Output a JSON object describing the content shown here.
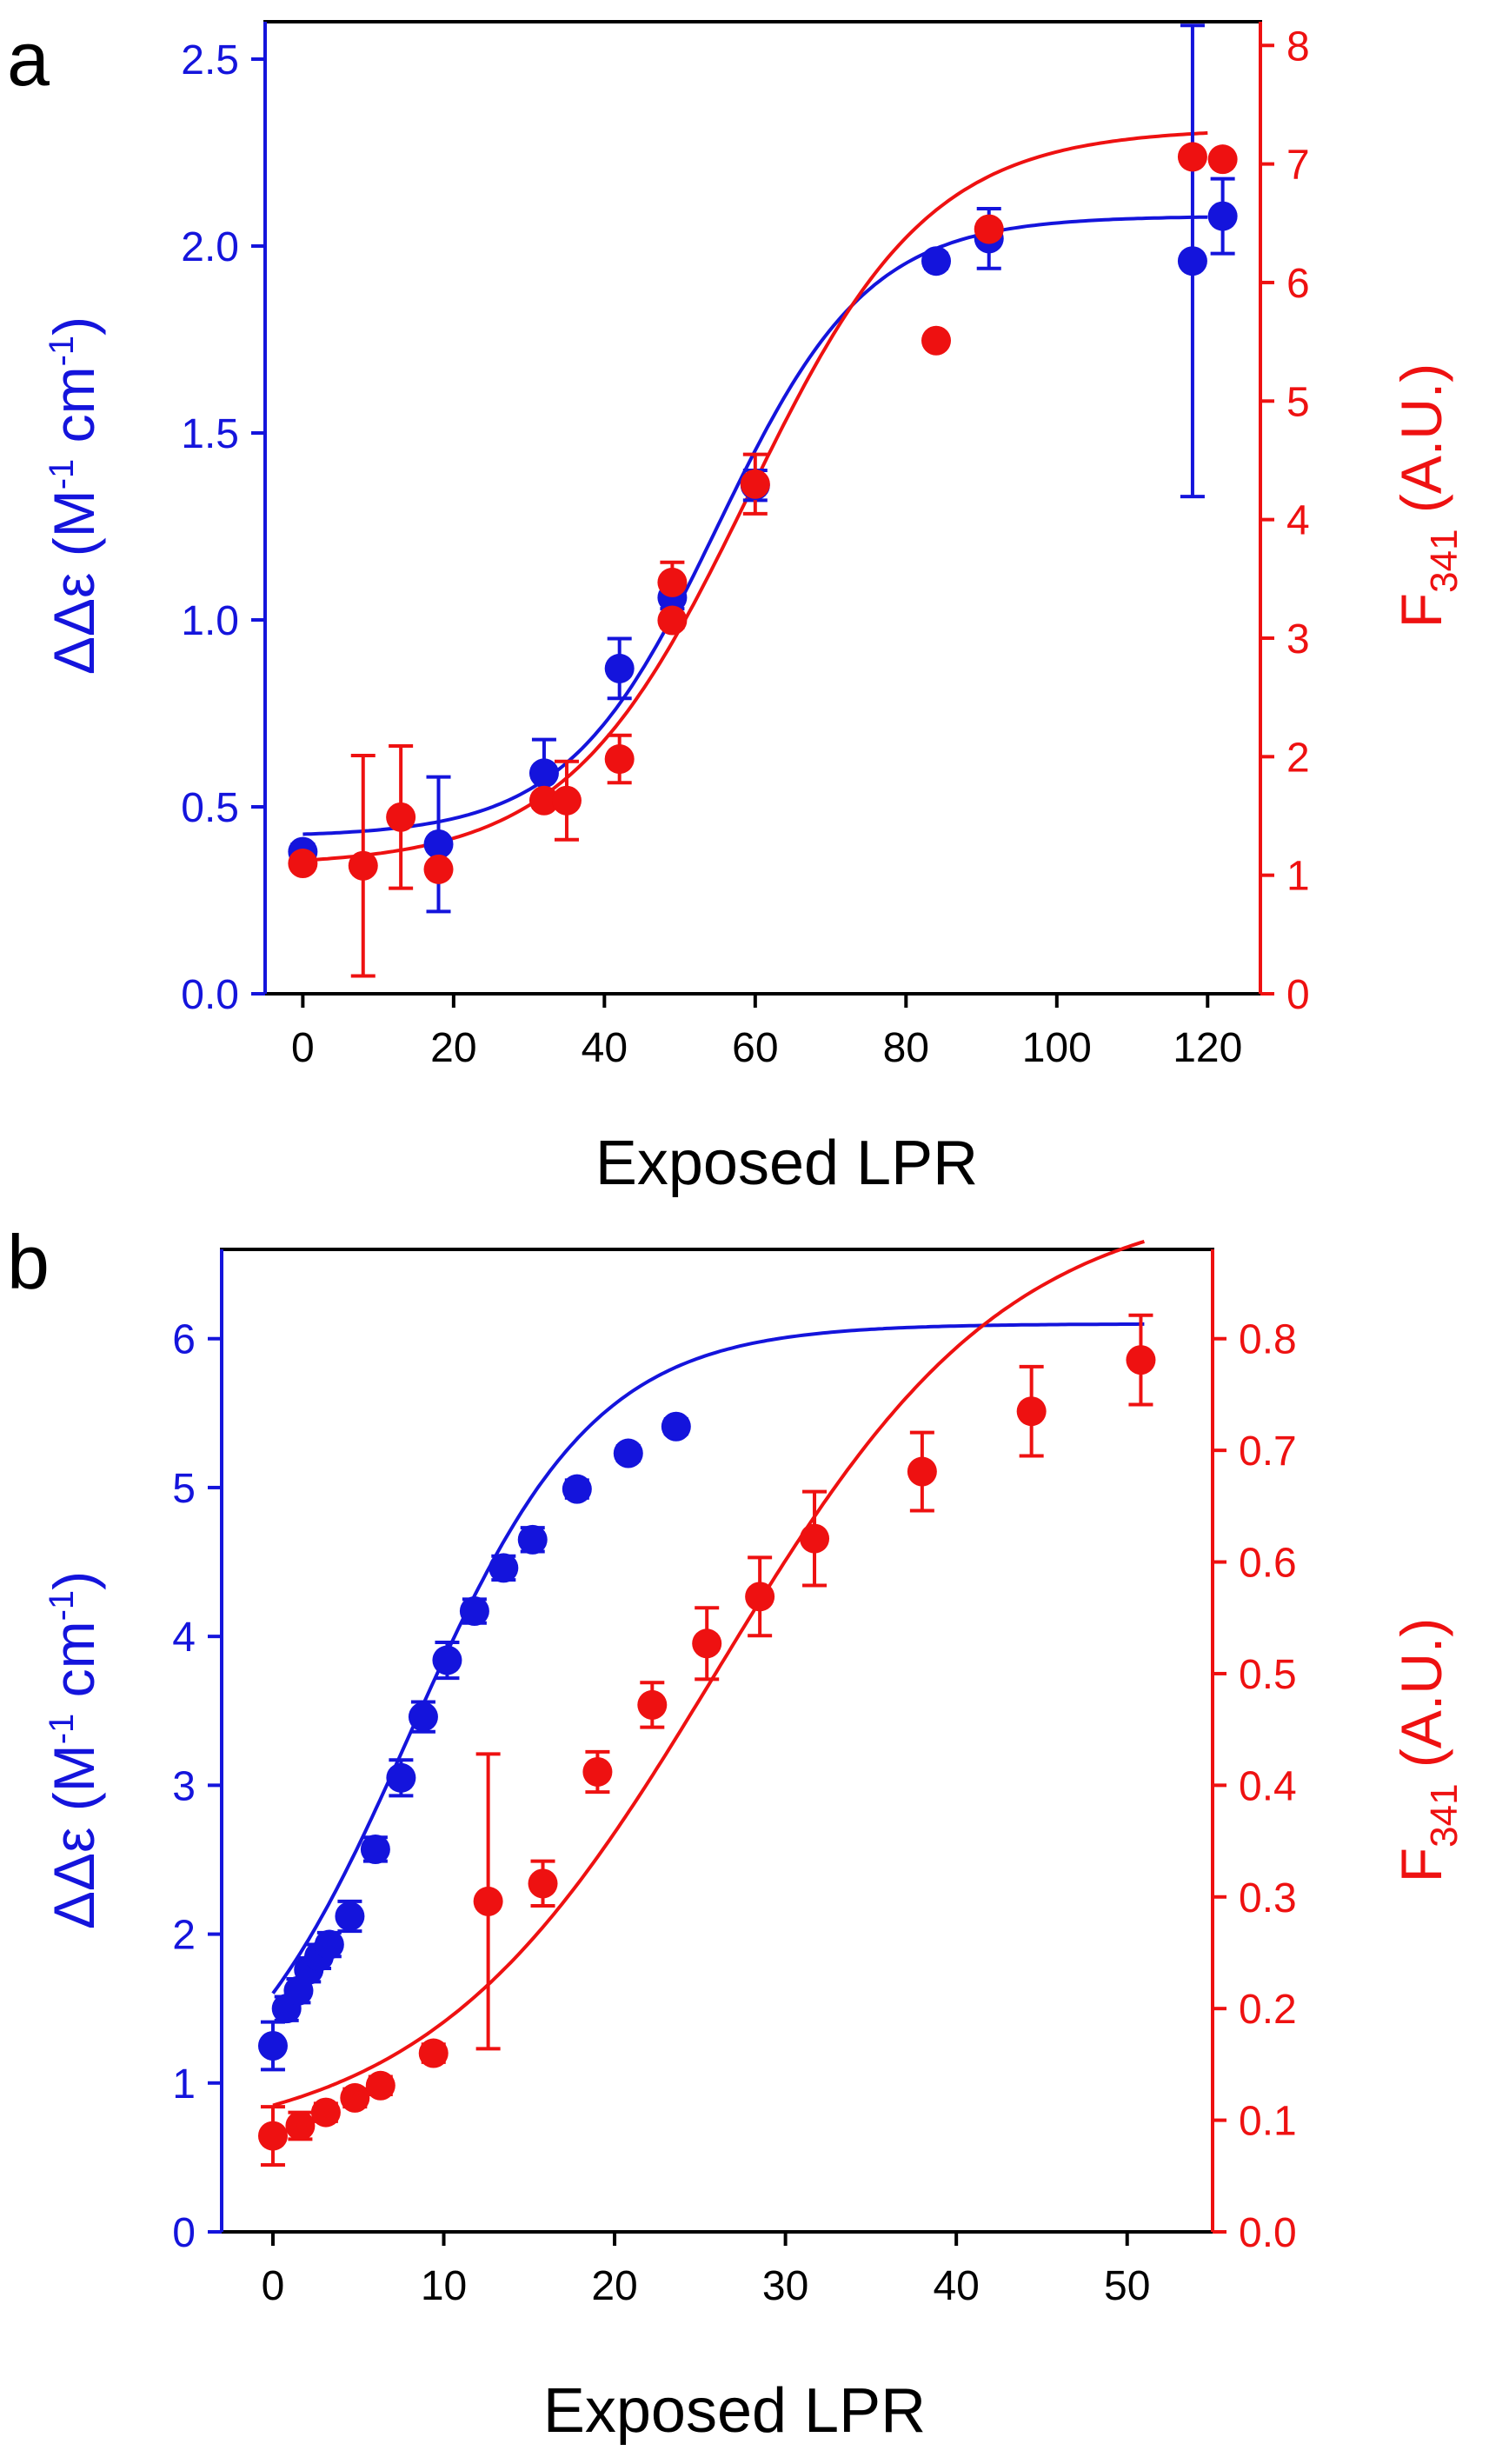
{
  "figure": {
    "colors": {
      "blue": "#1414dc",
      "red": "#ee1111",
      "black": "#000000"
    }
  },
  "chart_data": [
    {
      "type": "scatter",
      "panel_label": "a",
      "xlabel": "Exposed LPR",
      "ylabel_left": {
        "prefix": "ΔΔε (M",
        "sup1": "-1",
        "mid": " cm",
        "sup2": "-1",
        "suffix": ")"
      },
      "ylabel_right": {
        "main": "F",
        "sub": "341",
        "suffix": " (A.U.)"
      },
      "xlim": [
        -5,
        127
      ],
      "ylim_left": [
        0,
        2.6
      ],
      "ylim_right": [
        0,
        8.2
      ],
      "xticks": [
        0,
        20,
        40,
        60,
        80,
        100,
        120
      ],
      "yticks_left": [
        0.0,
        0.5,
        1.0,
        1.5,
        2.0,
        2.5
      ],
      "yticks_left_labels": [
        "0.0",
        "0.5",
        "1.0",
        "1.5",
        "2.0",
        "2.5"
      ],
      "yticks_right": [
        0,
        1,
        2,
        3,
        4,
        5,
        6,
        7,
        8
      ],
      "yticks_right_labels": [
        "0",
        "1",
        "2",
        "3",
        "4",
        "5",
        "6",
        "7",
        "8"
      ],
      "series": [
        {
          "name": "ΔΔε",
          "axis": "left",
          "color": "blue",
          "points": [
            {
              "x": 0,
              "y": 0.38,
              "err": 0.02
            },
            {
              "x": 18,
              "y": 0.4,
              "err": 0.18
            },
            {
              "x": 32,
              "y": 0.59,
              "err": 0.09
            },
            {
              "x": 42,
              "y": 0.87,
              "err": 0.08
            },
            {
              "x": 49,
              "y": 1.06,
              "err": 0.03
            },
            {
              "x": 60,
              "y": 1.36,
              "err": 0.04
            },
            {
              "x": 84,
              "y": 1.96,
              "err": 0.02
            },
            {
              "x": 91,
              "y": 2.02,
              "err": 0.08
            },
            {
              "x": 118,
              "y": 1.96,
              "err": 0.63
            },
            {
              "x": 122,
              "y": 2.08,
              "err": 0.1
            }
          ],
          "fit": {
            "kind": "sigmoid",
            "bottom": 0.42,
            "top": 2.08,
            "x50": 55,
            "k": 10,
            "xmin": 0,
            "xmax": 120
          }
        },
        {
          "name": "F341",
          "axis": "right",
          "color": "red",
          "points": [
            {
              "x": 0,
              "y": 1.1,
              "err": 0.04
            },
            {
              "x": 8,
              "y": 1.08,
              "err": 0.93
            },
            {
              "x": 13,
              "y": 1.49,
              "err": 0.6
            },
            {
              "x": 18,
              "y": 1.05,
              "err": 0.05
            },
            {
              "x": 32,
              "y": 1.63,
              "err": 0.06
            },
            {
              "x": 35,
              "y": 1.63,
              "err": 0.33
            },
            {
              "x": 42,
              "y": 1.98,
              "err": 0.2
            },
            {
              "x": 49,
              "y": 3.15,
              "err": 0.06
            },
            {
              "x": 49,
              "y": 3.47,
              "err": 0.17
            },
            {
              "x": 60,
              "y": 4.3,
              "err": 0.25
            },
            {
              "x": 84,
              "y": 5.51,
              "err": 0.04
            },
            {
              "x": 91,
              "y": 6.45,
              "err": 0.06
            },
            {
              "x": 118,
              "y": 7.06,
              "err": 0.03
            },
            {
              "x": 122,
              "y": 7.04,
              "err": 0.03
            }
          ],
          "fit": {
            "kind": "sigmoid",
            "bottom": 1.08,
            "top": 7.3,
            "x50": 59,
            "k": 12,
            "xmin": 0,
            "xmax": 120
          }
        }
      ]
    },
    {
      "type": "scatter",
      "panel_label": "b",
      "xlabel": "Exposed LPR",
      "ylabel_left": {
        "prefix": "ΔΔε (M",
        "sup1": "-1",
        "mid": " cm",
        "sup2": "-1",
        "suffix": ")"
      },
      "ylabel_right": {
        "main": "F",
        "sub": "341",
        "suffix": " (A.U.)"
      },
      "xlim": [
        -3,
        55
      ],
      "ylim_left": [
        0,
        6.6
      ],
      "ylim_right": [
        0,
        0.88
      ],
      "xticks": [
        0,
        10,
        20,
        30,
        40,
        50
      ],
      "yticks_left": [
        0,
        1,
        2,
        3,
        4,
        5,
        6
      ],
      "yticks_left_labels": [
        "0",
        "1",
        "2",
        "3",
        "4",
        "5",
        "6"
      ],
      "yticks_right": [
        0.0,
        0.1,
        0.2,
        0.3,
        0.4,
        0.5,
        0.6,
        0.7,
        0.8
      ],
      "yticks_right_labels": [
        "0.0",
        "0.1",
        "0.2",
        "0.3",
        "0.4",
        "0.5",
        "0.6",
        "0.7",
        "0.8"
      ],
      "series": [
        {
          "name": "ΔΔε",
          "axis": "left",
          "color": "blue",
          "points": [
            {
              "x": 0,
              "y": 1.25,
              "err": 0.16
            },
            {
              "x": 0.8,
              "y": 1.5,
              "err": 0.08
            },
            {
              "x": 1.5,
              "y": 1.62,
              "err": 0.08
            },
            {
              "x": 2.1,
              "y": 1.76,
              "err": 0.08
            },
            {
              "x": 2.7,
              "y": 1.85,
              "err": 0.08
            },
            {
              "x": 3.3,
              "y": 1.93,
              "err": 0.08
            },
            {
              "x": 4.5,
              "y": 2.12,
              "err": 0.1
            },
            {
              "x": 6.0,
              "y": 2.57,
              "err": 0.08
            },
            {
              "x": 7.5,
              "y": 3.05,
              "err": 0.12
            },
            {
              "x": 8.8,
              "y": 3.46,
              "err": 0.1
            },
            {
              "x": 10.2,
              "y": 3.84,
              "err": 0.12
            },
            {
              "x": 11.8,
              "y": 4.17,
              "err": 0.08
            },
            {
              "x": 13.5,
              "y": 4.46,
              "err": 0.08
            },
            {
              "x": 15.2,
              "y": 4.65,
              "err": 0.08
            },
            {
              "x": 17.8,
              "y": 4.99,
              "err": 0.06
            },
            {
              "x": 20.8,
              "y": 5.23,
              "err": 0.05
            },
            {
              "x": 23.6,
              "y": 5.41,
              "err": 0.05
            }
          ],
          "fit": {
            "kind": "sigmoid",
            "bottom": 0.58,
            "top": 6.1,
            "x50": 8.0,
            "k": 5.4,
            "xmin": 0,
            "xmax": 51
          }
        },
        {
          "name": "F341",
          "axis": "right",
          "color": "red",
          "points": [
            {
              "x": 0,
              "y": 0.086,
              "err": 0.026
            },
            {
              "x": 1.6,
              "y": 0.095,
              "err": 0.012
            },
            {
              "x": 3.1,
              "y": 0.107,
              "err": 0.008
            },
            {
              "x": 4.8,
              "y": 0.12,
              "err": 0.008
            },
            {
              "x": 6.3,
              "y": 0.131,
              "err": 0.008
            },
            {
              "x": 9.4,
              "y": 0.16,
              "err": 0.008
            },
            {
              "x": 12.6,
              "y": 0.296,
              "err": 0.132
            },
            {
              "x": 15.8,
              "y": 0.312,
              "err": 0.02
            },
            {
              "x": 19.0,
              "y": 0.412,
              "err": 0.018
            },
            {
              "x": 22.2,
              "y": 0.472,
              "err": 0.02
            },
            {
              "x": 25.4,
              "y": 0.527,
              "err": 0.032
            },
            {
              "x": 28.5,
              "y": 0.569,
              "err": 0.035
            },
            {
              "x": 31.7,
              "y": 0.621,
              "err": 0.042
            },
            {
              "x": 38.0,
              "y": 0.681,
              "err": 0.035
            },
            {
              "x": 44.4,
              "y": 0.735,
              "err": 0.04
            },
            {
              "x": 50.8,
              "y": 0.781,
              "err": 0.04
            }
          ],
          "fit": {
            "kind": "sigmoid",
            "bottom": 0.075,
            "top": 0.93,
            "x50": 26,
            "k": 8.5,
            "xmin": 0,
            "xmax": 51
          }
        }
      ]
    }
  ]
}
